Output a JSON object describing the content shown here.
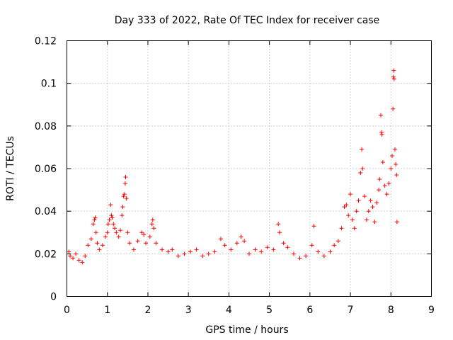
{
  "chart_data": {
    "type": "scatter",
    "title": "Day 333 of 2022, Rate Of TEC Index for receiver case",
    "xlabel": "GPS time / hours",
    "ylabel": "ROTI / TECUs",
    "xlim": [
      0,
      9
    ],
    "ylim": [
      0,
      0.12
    ],
    "xticks": [
      0,
      1,
      2,
      3,
      4,
      5,
      6,
      7,
      8,
      9
    ],
    "xtick_labels": [
      "0",
      "1",
      "2",
      "3",
      "4",
      "5",
      "6",
      "7",
      "8",
      "9"
    ],
    "yticks": [
      0,
      0.02,
      0.04,
      0.06,
      0.08,
      0.1,
      0.12
    ],
    "ytick_labels": [
      "0",
      "0.02",
      "0.04",
      "0.06",
      "0.08",
      "0.1",
      "0.12"
    ],
    "grid": true,
    "marker": "+",
    "color": "#ff0000",
    "series": [
      {
        "name": "ROTI",
        "points": [
          [
            0.05,
            0.021
          ],
          [
            0.08,
            0.019
          ],
          [
            0.15,
            0.018
          ],
          [
            0.22,
            0.02
          ],
          [
            0.3,
            0.017
          ],
          [
            0.38,
            0.016
          ],
          [
            0.45,
            0.019
          ],
          [
            0.52,
            0.024
          ],
          [
            0.6,
            0.027
          ],
          [
            0.65,
            0.034
          ],
          [
            0.68,
            0.036
          ],
          [
            0.7,
            0.037
          ],
          [
            0.72,
            0.03
          ],
          [
            0.75,
            0.025
          ],
          [
            0.8,
            0.022
          ],
          [
            0.88,
            0.024
          ],
          [
            0.95,
            0.028
          ],
          [
            1.0,
            0.03
          ],
          [
            1.02,
            0.034
          ],
          [
            1.05,
            0.036
          ],
          [
            1.08,
            0.043
          ],
          [
            1.1,
            0.038
          ],
          [
            1.12,
            0.037
          ],
          [
            1.15,
            0.034
          ],
          [
            1.18,
            0.032
          ],
          [
            1.22,
            0.03
          ],
          [
            1.28,
            0.028
          ],
          [
            1.32,
            0.031
          ],
          [
            1.36,
            0.038
          ],
          [
            1.38,
            0.042
          ],
          [
            1.4,
            0.047
          ],
          [
            1.42,
            0.048
          ],
          [
            1.44,
            0.053
          ],
          [
            1.45,
            0.056
          ],
          [
            1.47,
            0.046
          ],
          [
            1.5,
            0.03
          ],
          [
            1.55,
            0.025
          ],
          [
            1.65,
            0.022
          ],
          [
            1.75,
            0.026
          ],
          [
            1.85,
            0.03
          ],
          [
            1.9,
            0.029
          ],
          [
            1.95,
            0.025
          ],
          [
            2.05,
            0.028
          ],
          [
            2.1,
            0.034
          ],
          [
            2.12,
            0.036
          ],
          [
            2.15,
            0.032
          ],
          [
            2.2,
            0.025
          ],
          [
            2.35,
            0.022
          ],
          [
            2.5,
            0.021
          ],
          [
            2.6,
            0.022
          ],
          [
            2.75,
            0.019
          ],
          [
            2.9,
            0.02
          ],
          [
            3.05,
            0.021
          ],
          [
            3.2,
            0.022
          ],
          [
            3.35,
            0.019
          ],
          [
            3.5,
            0.02
          ],
          [
            3.65,
            0.021
          ],
          [
            3.8,
            0.027
          ],
          [
            3.9,
            0.024
          ],
          [
            4.05,
            0.022
          ],
          [
            4.2,
            0.025
          ],
          [
            4.3,
            0.028
          ],
          [
            4.38,
            0.026
          ],
          [
            4.5,
            0.02
          ],
          [
            4.65,
            0.022
          ],
          [
            4.8,
            0.021
          ],
          [
            4.95,
            0.023
          ],
          [
            5.1,
            0.022
          ],
          [
            5.22,
            0.034
          ],
          [
            5.25,
            0.03
          ],
          [
            5.35,
            0.025
          ],
          [
            5.45,
            0.023
          ],
          [
            5.6,
            0.02
          ],
          [
            5.75,
            0.018
          ],
          [
            5.9,
            0.019
          ],
          [
            6.05,
            0.024
          ],
          [
            6.1,
            0.033
          ],
          [
            6.2,
            0.021
          ],
          [
            6.35,
            0.019
          ],
          [
            6.5,
            0.021
          ],
          [
            6.6,
            0.024
          ],
          [
            6.7,
            0.026
          ],
          [
            6.78,
            0.032
          ],
          [
            6.85,
            0.042
          ],
          [
            6.9,
            0.043
          ],
          [
            6.95,
            0.038
          ],
          [
            7.0,
            0.048
          ],
          [
            7.05,
            0.036
          ],
          [
            7.1,
            0.032
          ],
          [
            7.15,
            0.04
          ],
          [
            7.2,
            0.045
          ],
          [
            7.25,
            0.058
          ],
          [
            7.28,
            0.069
          ],
          [
            7.3,
            0.06
          ],
          [
            7.35,
            0.047
          ],
          [
            7.4,
            0.036
          ],
          [
            7.45,
            0.04
          ],
          [
            7.5,
            0.045
          ],
          [
            7.55,
            0.042
          ],
          [
            7.6,
            0.035
          ],
          [
            7.65,
            0.044
          ],
          [
            7.7,
            0.05
          ],
          [
            7.72,
            0.055
          ],
          [
            7.75,
            0.085
          ],
          [
            7.77,
            0.077
          ],
          [
            7.78,
            0.076
          ],
          [
            7.8,
            0.063
          ],
          [
            7.85,
            0.052
          ],
          [
            7.9,
            0.048
          ],
          [
            7.95,
            0.053
          ],
          [
            8.0,
            0.06
          ],
          [
            8.03,
            0.066
          ],
          [
            8.05,
            0.088
          ],
          [
            8.06,
            0.103
          ],
          [
            8.07,
            0.106
          ],
          [
            8.08,
            0.102
          ],
          [
            8.1,
            0.069
          ],
          [
            8.12,
            0.062
          ],
          [
            8.14,
            0.057
          ],
          [
            8.15,
            0.035
          ]
        ]
      }
    ]
  }
}
